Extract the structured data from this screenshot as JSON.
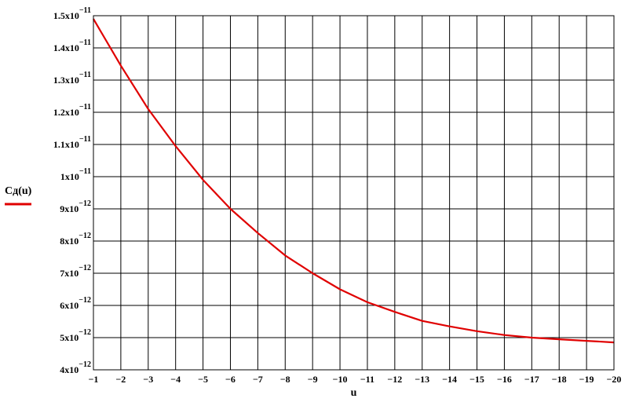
{
  "chart_data": {
    "type": "line",
    "title": "",
    "xlabel": "u",
    "ylabel": "",
    "xlim": [
      -1,
      -20
    ],
    "ylim": [
      4e-12,
      1.5e-11
    ],
    "grid": true,
    "legend": {
      "placement": "left"
    },
    "x_ticks": [
      "−1",
      "−2",
      "−3",
      "−4",
      "−5",
      "−6",
      "−7",
      "−8",
      "−9",
      "−10",
      "−11",
      "−12",
      "−13",
      "−14",
      "−15",
      "−16",
      "−17",
      "−18",
      "−19",
      "−20"
    ],
    "y_ticks": [
      {
        "mant": "4x10",
        "exp": "−12"
      },
      {
        "mant": "5x10",
        "exp": "−12"
      },
      {
        "mant": "6x10",
        "exp": "−12"
      },
      {
        "mant": "7x10",
        "exp": "−12"
      },
      {
        "mant": "8x10",
        "exp": "−12"
      },
      {
        "mant": "9x10",
        "exp": "−12"
      },
      {
        "mant": "1x10",
        "exp": "−11"
      },
      {
        "mant": "1.1x10",
        "exp": "−11"
      },
      {
        "mant": "1.2x10",
        "exp": "−11"
      },
      {
        "mant": "1.3x10",
        "exp": "−11"
      },
      {
        "mant": "1.4x10",
        "exp": "−11"
      },
      {
        "mant": "1.5x10",
        "exp": "−11"
      }
    ],
    "series": [
      {
        "name": "Cд(u)",
        "color": "#e00000",
        "x": [
          -1,
          -2,
          -3,
          -4,
          -5,
          -6,
          -7,
          -8,
          -9,
          -10,
          -11,
          -12,
          -13,
          -14,
          -15,
          -16,
          -17,
          -18,
          -19,
          -20
        ],
        "y": [
          1.49e-11,
          1.345e-11,
          1.21e-11,
          1.095e-11,
          9.9e-12,
          9e-12,
          8.25e-12,
          7.55e-12,
          7e-12,
          6.5e-12,
          6.1e-12,
          5.8e-12,
          5.52e-12,
          5.35e-12,
          5.2e-12,
          5.08e-12,
          5e-12,
          4.95e-12,
          4.9e-12,
          4.85e-12
        ]
      }
    ]
  }
}
